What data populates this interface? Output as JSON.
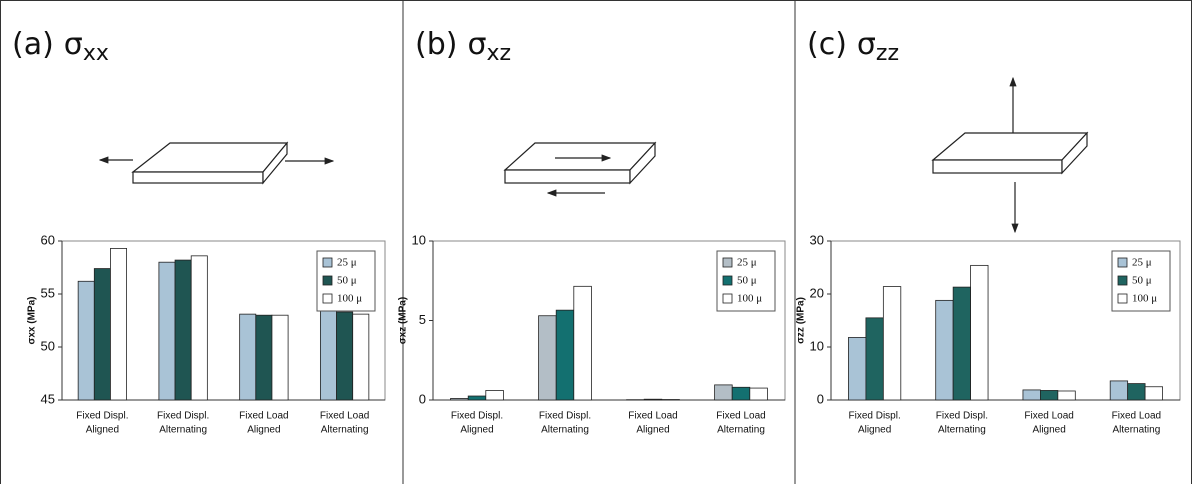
{
  "chart_data": [
    {
      "type": "bar",
      "heading": {
        "label": "(a)",
        "symbol": "σ",
        "subscript": "xx"
      },
      "ylabel": "σxx (MPa)",
      "categories": [
        [
          "Fixed Displ.",
          "Aligned"
        ],
        [
          "Fixed Displ.",
          "Alternating"
        ],
        [
          "Fixed Load",
          "Aligned"
        ],
        [
          "Fixed Load",
          "Alternating"
        ]
      ],
      "series": [
        {
          "name": "25 μ",
          "color": "#a9c3d6",
          "values": [
            56.2,
            58.0,
            53.1,
            53.5
          ]
        },
        {
          "name": "50 μ",
          "color": "#1f5552",
          "values": [
            57.4,
            58.2,
            53.0,
            53.3
          ]
        },
        {
          "name": "100 μ",
          "color": "#ffffff",
          "values": [
            59.3,
            58.6,
            53.0,
            53.1
          ]
        }
      ],
      "ylim": [
        45,
        60
      ],
      "yticks": [
        45,
        50,
        55,
        60
      ]
    },
    {
      "type": "bar",
      "heading": {
        "label": "(b)",
        "symbol": "σ",
        "subscript": "xz"
      },
      "ylabel": "σxz (MPa)",
      "categories": [
        [
          "Fixed Displ.",
          "Aligned"
        ],
        [
          "Fixed Displ.",
          "Alternating"
        ],
        [
          "Fixed Load",
          "Aligned"
        ],
        [
          "Fixed Load",
          "Alternating"
        ]
      ],
      "series": [
        {
          "name": "25 μ",
          "color": "#b3bec6",
          "values": [
            0.1,
            5.3,
            0.02,
            0.95
          ]
        },
        {
          "name": "50 μ",
          "color": "#137070",
          "values": [
            0.25,
            5.65,
            0.05,
            0.8
          ]
        },
        {
          "name": "100 μ",
          "color": "#ffffff",
          "values": [
            0.6,
            7.15,
            0.03,
            0.75
          ]
        }
      ],
      "ylim": [
        0,
        10
      ],
      "yticks": [
        0,
        5,
        10
      ]
    },
    {
      "type": "bar",
      "heading": {
        "label": "(c)",
        "symbol": "σ",
        "subscript": "zz"
      },
      "ylabel": "σzz (MPa)",
      "categories": [
        [
          "Fixed Displ.",
          "Aligned"
        ],
        [
          "Fixed Displ.",
          "Alternating"
        ],
        [
          "Fixed Load",
          "Aligned"
        ],
        [
          "Fixed Load",
          "Alternating"
        ]
      ],
      "series": [
        {
          "name": "25 μ",
          "color": "#a9c3d6",
          "values": [
            11.8,
            18.8,
            1.9,
            3.6
          ]
        },
        {
          "name": "50 μ",
          "color": "#1f6460",
          "values": [
            15.5,
            21.3,
            1.8,
            3.1
          ]
        },
        {
          "name": "100 μ",
          "color": "#ffffff",
          "values": [
            21.4,
            25.4,
            1.7,
            2.5
          ]
        }
      ],
      "ylim": [
        0,
        30
      ],
      "yticks": [
        0,
        10,
        20,
        30
      ]
    }
  ]
}
